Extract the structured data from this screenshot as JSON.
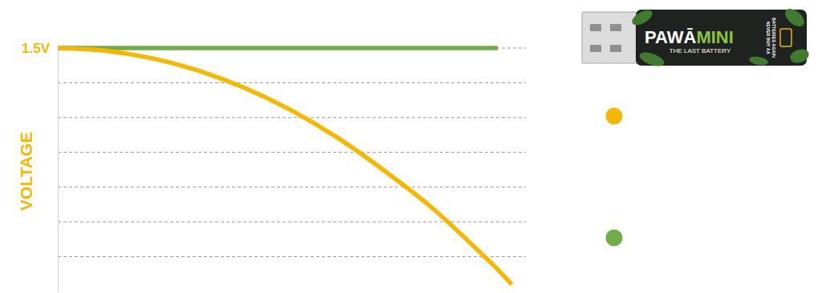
{
  "chart_data": {
    "type": "line",
    "ylabel": "VOLTAGE",
    "x": [
      0,
      10,
      20,
      30,
      40,
      50,
      60,
      70,
      80,
      90,
      94,
      97
    ],
    "xlim": [
      0,
      100
    ],
    "ylim": [
      0.1,
      1.5
    ],
    "yticks": [
      {
        "value": 1.5,
        "label": "1.5V"
      },
      {
        "value": 1.3,
        "label": null
      },
      {
        "value": 1.1,
        "label": null
      },
      {
        "value": 0.9,
        "label": null
      },
      {
        "value": 0.7,
        "label": null
      },
      {
        "value": 0.5,
        "label": null
      },
      {
        "value": 0.3,
        "label": null
      }
    ],
    "grid": true,
    "tick_labels": "y",
    "legend": "right",
    "series": [
      {
        "color": "#70AD47",
        "values": [
          1.5,
          1.5,
          1.5,
          1.5,
          1.5,
          1.5,
          1.5,
          1.5,
          1.5,
          1.5,
          1.5,
          null
        ]
      },
      {
        "color": "#F5B700",
        "values": [
          1.5,
          1.485,
          1.442,
          1.37,
          1.27,
          1.14,
          0.98,
          0.79,
          0.58,
          0.33,
          0.226,
          0.14
        ]
      }
    ],
    "annotations": [
      "PAWĀ",
      "MINI",
      "THE LAST BATTERY",
      "NEVER BUY AA",
      "BATTERIES AGAIN"
    ]
  }
}
